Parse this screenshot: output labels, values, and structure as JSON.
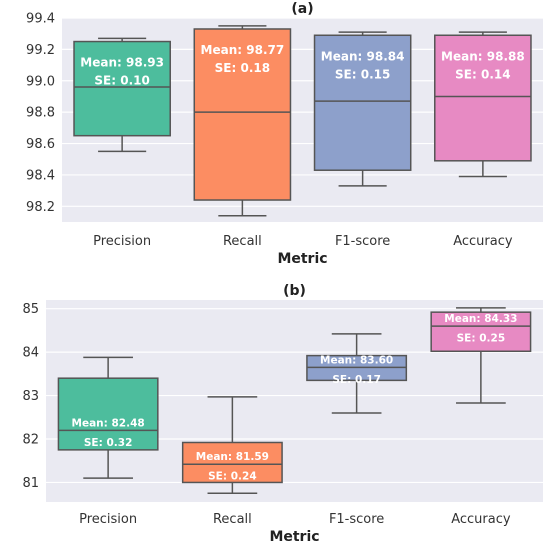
{
  "chart_data": [
    {
      "type": "box",
      "title": "(a)",
      "xlabel": "Metric",
      "ylabel": "",
      "ylim": [
        98.1,
        99.4
      ],
      "yticks": [
        "98.2",
        "98.4",
        "98.6",
        "98.8",
        "99.0",
        "99.2",
        "99.4"
      ],
      "grid": true,
      "categories": [
        "Precision",
        "Recall",
        "F1-score",
        "Accuracy"
      ],
      "colors": [
        "#4dbd9d",
        "#fc8d62",
        "#8da0cb",
        "#e78ac3"
      ],
      "boxes": [
        {
          "whisker_low": 98.55,
          "q1": 98.65,
          "median": 98.96,
          "q3": 99.25,
          "whisker_high": 99.27,
          "mean_label": "Mean: 98.93",
          "se_label": "SE: 0.10"
        },
        {
          "whisker_low": 98.14,
          "q1": 98.24,
          "median": 98.8,
          "q3": 99.33,
          "whisker_high": 99.35,
          "mean_label": "Mean: 98.77",
          "se_label": "SE: 0.18"
        },
        {
          "whisker_low": 98.33,
          "q1": 98.43,
          "median": 98.87,
          "q3": 99.29,
          "whisker_high": 99.31,
          "mean_label": "Mean: 98.84",
          "se_label": "SE: 0.15"
        },
        {
          "whisker_low": 98.39,
          "q1": 98.49,
          "median": 98.9,
          "q3": 99.29,
          "whisker_high": 99.31,
          "mean_label": "Mean: 98.88",
          "se_label": "SE: 0.14"
        }
      ]
    },
    {
      "type": "box",
      "title": "(b)",
      "xlabel": "Metric",
      "ylabel": "",
      "ylim": [
        80.55,
        85.2
      ],
      "yticks": [
        "81",
        "82",
        "83",
        "84",
        "85"
      ],
      "grid": true,
      "categories": [
        "Precision",
        "Recall",
        "F1-score",
        "Accuracy"
      ],
      "colors": [
        "#4dbd9d",
        "#fc8d62",
        "#8da0cb",
        "#e78ac3"
      ],
      "boxes": [
        {
          "whisker_low": 81.1,
          "q1": 81.75,
          "median": 82.2,
          "q3": 83.4,
          "whisker_high": 83.88,
          "mean_label": "Mean: 82.48",
          "se_label": "SE: 0.32"
        },
        {
          "whisker_low": 80.75,
          "q1": 81.0,
          "median": 81.42,
          "q3": 81.92,
          "whisker_high": 82.97,
          "mean_label": "Mean: 81.59",
          "se_label": "SE: 0.24"
        },
        {
          "whisker_low": 82.6,
          "q1": 83.35,
          "median": 83.65,
          "q3": 83.92,
          "whisker_high": 84.42,
          "mean_label": "Mean: 83.60",
          "se_label": "SE: 0.17"
        },
        {
          "whisker_low": 82.83,
          "q1": 84.02,
          "median": 84.6,
          "q3": 84.92,
          "whisker_high": 85.02,
          "mean_label": "Mean: 84.33",
          "se_label": "SE: 0.25"
        }
      ]
    }
  ]
}
